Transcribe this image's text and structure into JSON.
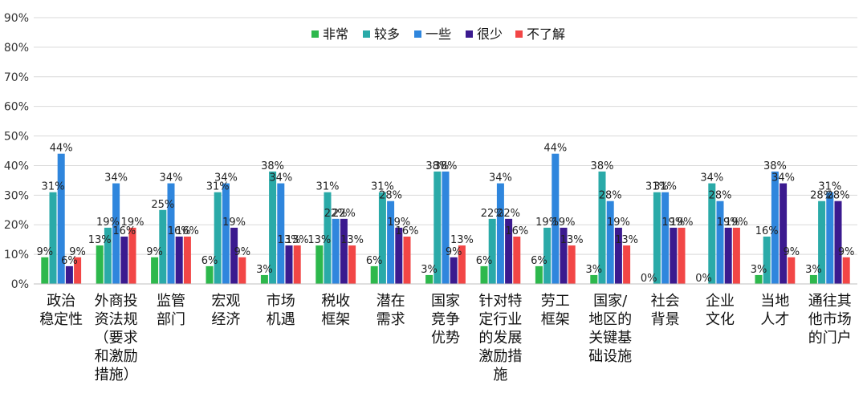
{
  "chart_data": {
    "type": "bar",
    "title": "",
    "xlabel": "",
    "ylabel": "",
    "ylim": [
      0,
      90
    ],
    "y_ticks": [
      "0%",
      "10%",
      "20%",
      "30%",
      "40%",
      "50%",
      "60%",
      "70%",
      "80%",
      "90%"
    ],
    "grid": true,
    "legend_position": "top",
    "categories": [
      "政治稳定性",
      "外商投资法规（要求和激励措施）",
      "监管部门",
      "宏观经济",
      "市场机遇",
      "税收框架",
      "潜在需求",
      "国家竞争优势",
      "针对特定行业的发展激励措施",
      "劳工框架",
      "国家/地区的关键基础设施",
      "社会背景",
      "企业文化",
      "当地人才",
      "通往其他市场的门户"
    ],
    "category_lines": [
      [
        "政治",
        "稳定性"
      ],
      [
        "外商投",
        "资法规",
        "（要求",
        "和激励",
        "措施）"
      ],
      [
        "监管",
        "部门"
      ],
      [
        "宏观",
        "经济"
      ],
      [
        "市场",
        "机遇"
      ],
      [
        "税收",
        "框架"
      ],
      [
        "潜在",
        "需求"
      ],
      [
        "国家",
        "竞争",
        "优势"
      ],
      [
        "针对特",
        "定行业",
        "的发展",
        "激励措",
        "施"
      ],
      [
        "劳工",
        "框架"
      ],
      [
        "国家/",
        "地区的",
        "关键基",
        "础设施"
      ],
      [
        "社会",
        "背景"
      ],
      [
        "企业",
        "文化"
      ],
      [
        "当地",
        "人才"
      ],
      [
        "通往其",
        "他市场",
        "的门户"
      ]
    ],
    "series": [
      {
        "name": "非常",
        "color": "#2db84c",
        "values": [
          9,
          13,
          9,
          6,
          3,
          13,
          6,
          3,
          6,
          6,
          3,
          0,
          0,
          3,
          3
        ]
      },
      {
        "name": "较多",
        "color": "#2aaaa8",
        "values": [
          31,
          19,
          25,
          31,
          38,
          31,
          31,
          38,
          22,
          19,
          38,
          31,
          34,
          16,
          28
        ]
      },
      {
        "name": "一些",
        "color": "#2f86dd",
        "values": [
          44,
          34,
          34,
          34,
          34,
          22,
          28,
          38,
          34,
          44,
          28,
          31,
          28,
          38,
          31
        ]
      },
      {
        "name": "很少",
        "color": "#3b1a8f",
        "values": [
          6,
          16,
          16,
          19,
          13,
          22,
          19,
          9,
          22,
          19,
          19,
          19,
          19,
          34,
          28
        ]
      },
      {
        "name": "不了解",
        "color": "#f24646",
        "values": [
          9,
          19,
          16,
          9,
          13,
          13,
          16,
          13,
          16,
          13,
          13,
          19,
          19,
          9,
          9
        ]
      }
    ]
  }
}
